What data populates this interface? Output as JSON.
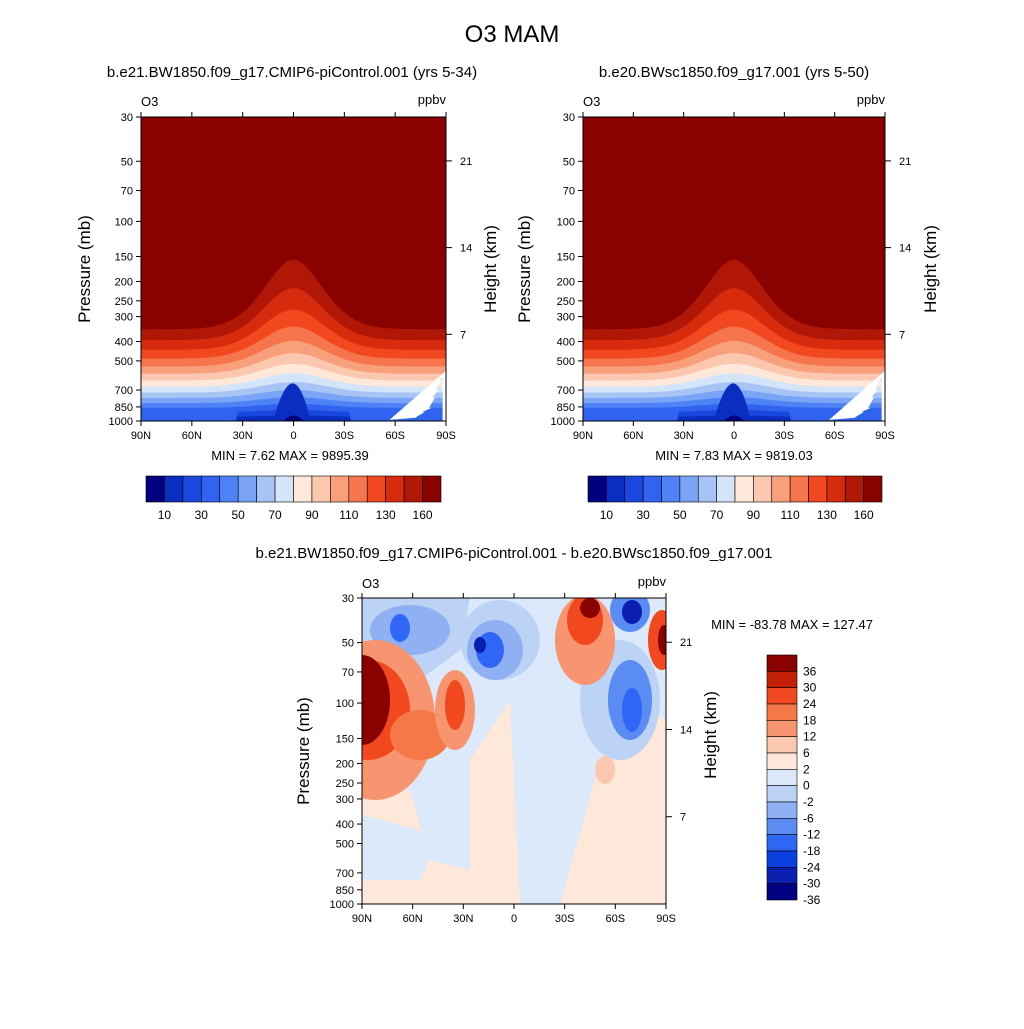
{
  "title": "O3 MAM",
  "colors": {
    "seq": [
      "#00007f",
      "#0a2fc0",
      "#1b47e0",
      "#2f63f0",
      "#4f83f5",
      "#7aa5f7",
      "#a8c4f5",
      "#d5e5f9",
      "#fde8d9",
      "#fbc7ae",
      "#f8a07c",
      "#f6754c",
      "#f2481f",
      "#d62b0c",
      "#b01706",
      "#8a0200"
    ],
    "diff": [
      "#000080",
      "#0a1fb0",
      "#0b3fe0",
      "#2f66f5",
      "#5b8cf3",
      "#8fb1f4",
      "#bcd3f6",
      "#dbe9fb",
      "#fde8d9",
      "#fbc7ae",
      "#f6956f",
      "#f57848",
      "#f2481f",
      "#c42008",
      "#8a0200"
    ]
  },
  "chart_data": [
    {
      "type": "contour",
      "panel": "left",
      "title": "b.e21.BW1850.f09_g17.CMIP6-piControl.001 (yrs 5-34)",
      "var_label": "O3",
      "units": "ppbv",
      "ylabel": "Pressure (mb)",
      "ylabel_right": "Height (km)",
      "xticks": [
        "90N",
        "60N",
        "30N",
        "0",
        "30S",
        "60S",
        "90S"
      ],
      "x_values": [
        90,
        60,
        30,
        0,
        -30,
        -60,
        -90
      ],
      "yticks": [
        "30",
        "50",
        "70",
        "100",
        "150",
        "200",
        "250",
        "300",
        "400",
        "500",
        "700",
        "850",
        "1000"
      ],
      "y_values": [
        30,
        50,
        70,
        100,
        150,
        200,
        250,
        300,
        400,
        500,
        700,
        850,
        1000
      ],
      "yticks_right": [
        "21",
        "14",
        "7"
      ],
      "yticks_right_values": [
        21,
        14,
        7
      ],
      "min": 7.62,
      "max": 9895.39,
      "minmax_text": "MIN =   7.62  MAX = 9895.39",
      "colorbar_labels": [
        "10",
        "30",
        "50",
        "70",
        "90",
        "110",
        "130",
        "160"
      ],
      "colorbar_levels": [
        10,
        20,
        30,
        40,
        50,
        60,
        70,
        80,
        90,
        100,
        110,
        120,
        130,
        140,
        160
      ]
    },
    {
      "type": "contour",
      "panel": "right",
      "title": "b.e20.BWsc1850.f09_g17.001 (yrs 5-50)",
      "var_label": "O3",
      "units": "ppbv",
      "ylabel": "Pressure (mb)",
      "ylabel_right": "Height (km)",
      "xticks": [
        "90N",
        "60N",
        "30N",
        "0",
        "30S",
        "60S",
        "90S"
      ],
      "x_values": [
        90,
        60,
        30,
        0,
        -30,
        -60,
        -90
      ],
      "yticks": [
        "30",
        "50",
        "70",
        "100",
        "150",
        "200",
        "250",
        "300",
        "400",
        "500",
        "700",
        "850",
        "1000"
      ],
      "y_values": [
        30,
        50,
        70,
        100,
        150,
        200,
        250,
        300,
        400,
        500,
        700,
        850,
        1000
      ],
      "yticks_right": [
        "21",
        "14",
        "7"
      ],
      "yticks_right_values": [
        21,
        14,
        7
      ],
      "min": 7.83,
      "max": 9819.03,
      "minmax_text": "MIN =   7.83  MAX = 9819.03",
      "colorbar_labels": [
        "10",
        "30",
        "50",
        "70",
        "90",
        "110",
        "130",
        "160"
      ],
      "colorbar_levels": [
        10,
        20,
        30,
        40,
        50,
        60,
        70,
        80,
        90,
        100,
        110,
        120,
        130,
        140,
        160
      ]
    },
    {
      "type": "contour",
      "panel": "difference",
      "title": "b.e21.BW1850.f09_g17.CMIP6-piControl.001 - b.e20.BWsc1850.f09_g17.001",
      "var_label": "O3",
      "units": "ppbv",
      "ylabel": "Pressure (mb)",
      "ylabel_right": "Height (km)",
      "xticks": [
        "90N",
        "60N",
        "30N",
        "0",
        "30S",
        "60S",
        "90S"
      ],
      "x_values": [
        90,
        60,
        30,
        0,
        -30,
        -60,
        -90
      ],
      "yticks": [
        "30",
        "50",
        "70",
        "100",
        "150",
        "200",
        "250",
        "300",
        "400",
        "500",
        "700",
        "850",
        "1000"
      ],
      "y_values": [
        30,
        50,
        70,
        100,
        150,
        200,
        250,
        300,
        400,
        500,
        700,
        850,
        1000
      ],
      "yticks_right": [
        "21",
        "14",
        "7"
      ],
      "yticks_right_values": [
        21,
        14,
        7
      ],
      "min": -83.78,
      "max": 127.47,
      "minmax_text": "MIN = -83.78  MAX = 127.47",
      "colorbar_labels": [
        "36",
        "30",
        "24",
        "18",
        "12",
        "6",
        "2",
        "0",
        "-2",
        "-6",
        "-12",
        "-18",
        "-24",
        "-30",
        "-36"
      ],
      "colorbar_levels": [
        36,
        30,
        24,
        18,
        12,
        6,
        2,
        0,
        -2,
        -6,
        -12,
        -18,
        -24,
        -30,
        -36
      ]
    }
  ]
}
